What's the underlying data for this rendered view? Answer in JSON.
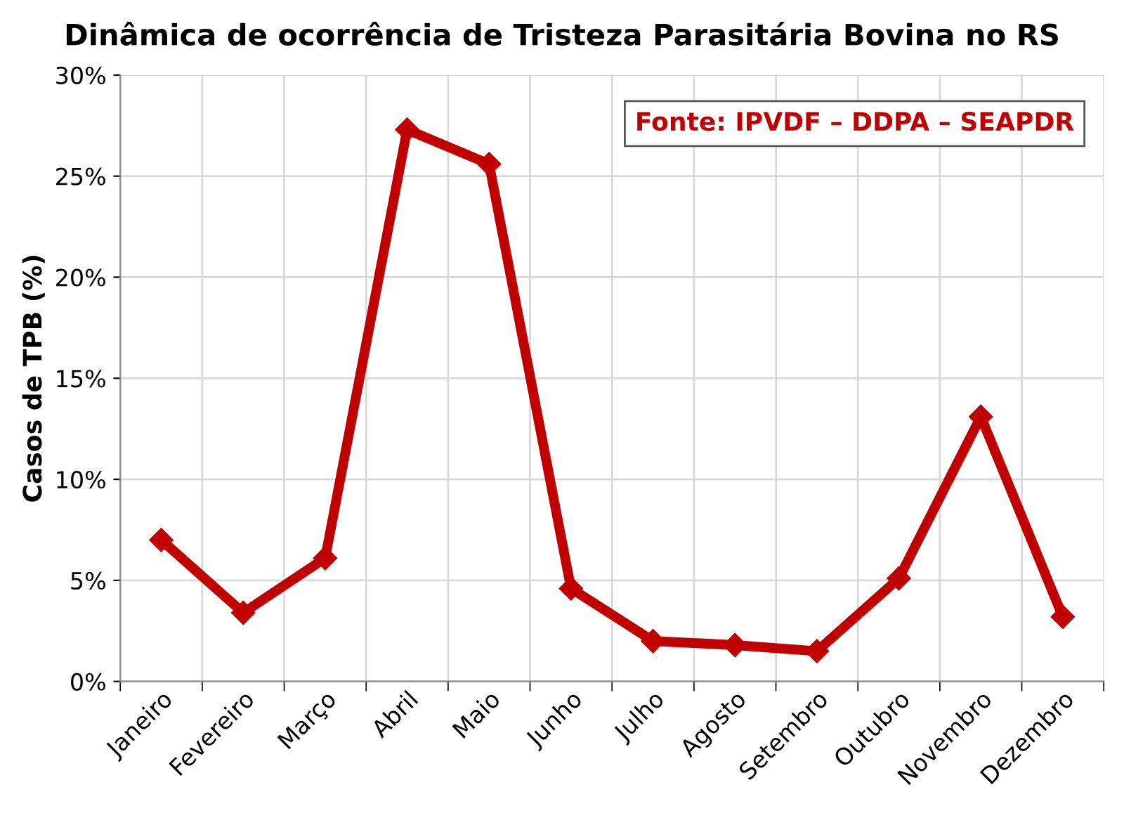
{
  "chart_data": {
    "type": "line",
    "title": "Dinâmica de ocorrência de Tristeza Parasitária Bovina no RS",
    "ylabel": "Casos de TPB (%)",
    "categories": [
      "Janeiro",
      "Fevereiro",
      "Março",
      "Abril",
      "Maio",
      "Junho",
      "Julho",
      "Agosto",
      "Setembro",
      "Outubro",
      "Novembro",
      "Dezembro"
    ],
    "series": [
      {
        "color": "#c00000",
        "values": [
          7.0,
          3.4,
          6.1,
          27.3,
          25.6,
          4.6,
          2.0,
          1.8,
          1.5,
          5.1,
          13.1,
          3.2
        ]
      }
    ],
    "ylim": [
      0,
      30
    ],
    "yticks": [
      {
        "value": 0,
        "label": "0%"
      },
      {
        "value": 5,
        "label": "5%"
      },
      {
        "value": 10,
        "label": "10%"
      },
      {
        "value": 15,
        "label": "15%"
      },
      {
        "value": 20,
        "label": "20%"
      },
      {
        "value": 25,
        "label": "25%"
      },
      {
        "value": 30,
        "label": "30%"
      }
    ],
    "grid": true,
    "marker": "diamond",
    "line_style": "solid",
    "annotations": [
      "Fonte: IPVDF – DDPA – SEAPDR"
    ]
  }
}
